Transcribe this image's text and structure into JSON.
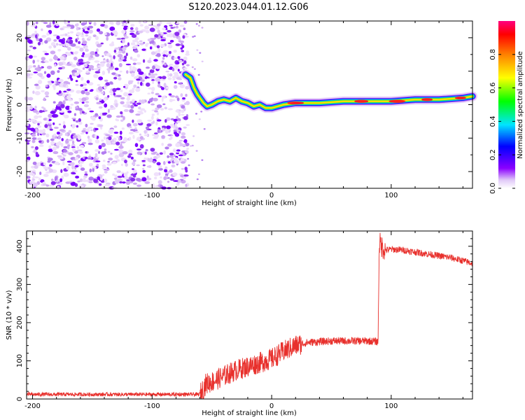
{
  "title": "S120.2023.044.01.12.G06",
  "chart_data": [
    {
      "type": "heatmap",
      "name": "spectrogram",
      "xlabel": "Height of straight line (km)",
      "ylabel": "Frequency (Hz)",
      "xlim": [
        -205,
        168
      ],
      "ylim": [
        -25,
        25
      ],
      "xticks": [
        -200,
        -100,
        0,
        100
      ],
      "yticks": [
        20,
        10,
        0,
        -10,
        -20
      ],
      "noise_region_x": [
        -205,
        -70
      ],
      "signal_trace": {
        "x": [
          -72,
          -68,
          -65,
          -62,
          -60,
          -57,
          -54,
          -50,
          -45,
          -40,
          -35,
          -30,
          -25,
          -20,
          -15,
          -10,
          -5,
          0,
          5,
          10,
          20,
          40,
          60,
          80,
          100,
          120,
          140,
          160,
          168
        ],
        "freq": [
          9,
          8,
          5,
          3,
          2,
          0.5,
          -0.5,
          0,
          1,
          1.5,
          1,
          2,
          1,
          0.5,
          -0.5,
          0,
          -1,
          -1,
          -0.5,
          0,
          0.5,
          0.5,
          1,
          1,
          1,
          1.5,
          1.5,
          2,
          2.5
        ]
      },
      "colorbar": {
        "label": "Normalized spectral amplitude",
        "range": [
          0,
          1
        ],
        "ticks": [
          "0.0",
          "0.2",
          "0.4",
          "0.6",
          "0.8"
        ],
        "colors": [
          "#ffffff",
          "#e0c8f8",
          "#8a00ff",
          "#0000ff",
          "#00e5ff",
          "#00ff00",
          "#ffff00",
          "#ff8000",
          "#ff0000",
          "#ff0080"
        ]
      }
    },
    {
      "type": "line",
      "name": "snr",
      "xlabel": "Height of straight line (km)",
      "ylabel": "SNR (10 * v/v)",
      "xlim": [
        -205,
        168
      ],
      "ylim": [
        0,
        440
      ],
      "xticks": [
        -200,
        -100,
        0,
        100
      ],
      "yticks": [
        0,
        100,
        200,
        300,
        400
      ],
      "color": "#e8302c",
      "series": {
        "x": [
          -205,
          -150,
          -100,
          -60,
          -55,
          -50,
          -40,
          -30,
          -20,
          -10,
          0,
          10,
          20,
          30,
          40,
          50,
          60,
          70,
          80,
          89,
          90,
          92,
          95,
          100,
          110,
          120,
          130,
          140,
          150,
          160,
          168
        ],
        "values": [
          12,
          12,
          12,
          12,
          40,
          45,
          60,
          75,
          85,
          95,
          105,
          125,
          140,
          148,
          150,
          152,
          152,
          152,
          152,
          150,
          410,
          400,
          390,
          392,
          390,
          385,
          380,
          375,
          370,
          362,
          355
        ]
      }
    }
  ]
}
